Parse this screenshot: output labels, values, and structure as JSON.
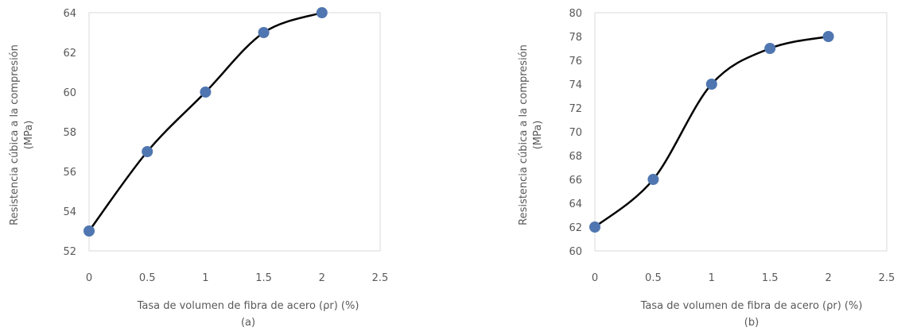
{
  "chart_data": [
    {
      "type": "line",
      "caption": "(a)",
      "xlabel": "Tasa de volumen de fibra de acero (ρr) (%)",
      "ylabel": "Resistencia cúbica a la compresión (MPa)",
      "ylabel_lines": [
        "Resistencia cúbica a la compresión",
        "(MPa)"
      ],
      "xlim": [
        0,
        2.5
      ],
      "ylim": [
        52,
        64
      ],
      "xticks": [
        "0",
        "0.5",
        "1",
        "1.5",
        "2",
        "2.5"
      ],
      "yticks": [
        "52",
        "54",
        "56",
        "58",
        "60",
        "62",
        "64"
      ],
      "grid": false,
      "series": [
        {
          "x": [
            0,
            0.5,
            1,
            1.5,
            2
          ],
          "y": [
            53,
            57,
            60,
            63,
            64
          ]
        }
      ],
      "line_color": "#000000",
      "marker_color": "#4f76b0"
    },
    {
      "type": "line",
      "caption": "(b)",
      "xlabel": "Tasa de volumen de fibra de acero (ρr) (%)",
      "ylabel": "Resistencia cúbica a la compresión (MPa)",
      "ylabel_lines": [
        "Resistencia cúbica a la compresión",
        "(MPa)"
      ],
      "xlim": [
        0,
        2.5
      ],
      "ylim": [
        60,
        80
      ],
      "xticks": [
        "0",
        "0.5",
        "1",
        "1.5",
        "2",
        "2.5"
      ],
      "yticks": [
        "60",
        "62",
        "64",
        "66",
        "68",
        "70",
        "72",
        "74",
        "76",
        "78",
        "80"
      ],
      "grid": false,
      "series": [
        {
          "x": [
            0,
            0.5,
            1,
            1.5,
            2
          ],
          "y": [
            62,
            66,
            74,
            77,
            78
          ]
        }
      ],
      "line_color": "#000000",
      "marker_color": "#4f76b0"
    }
  ]
}
